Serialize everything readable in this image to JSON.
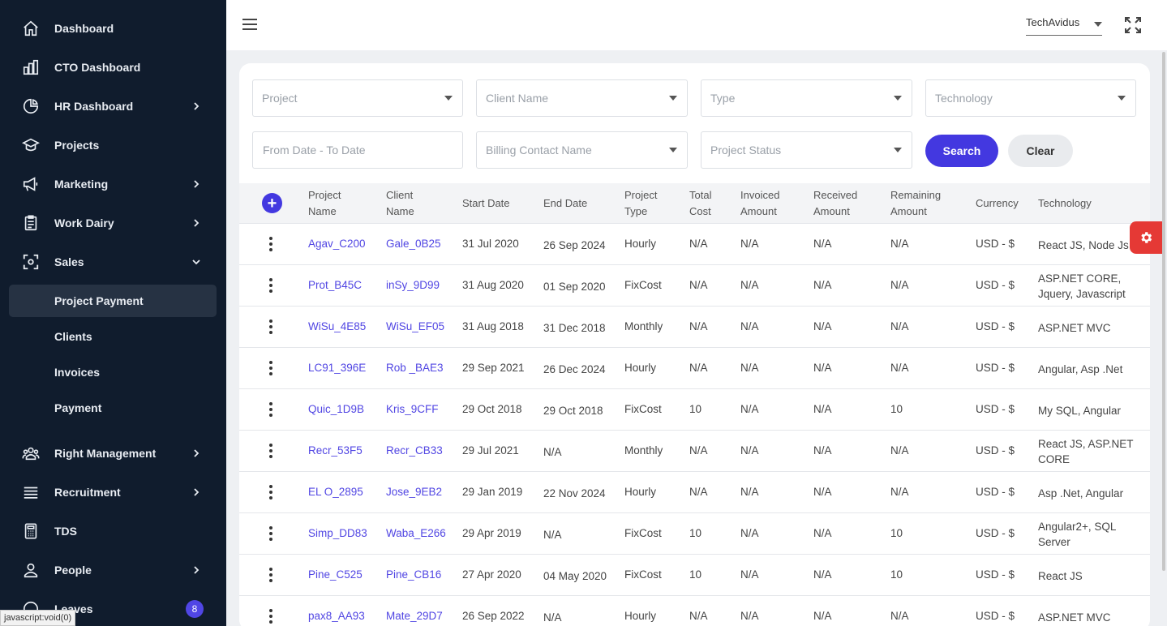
{
  "sidebar": {
    "items": [
      {
        "label": "Dashboard",
        "icon": "home-icon"
      },
      {
        "label": "CTO Dashboard",
        "icon": "bar-chart-icon"
      },
      {
        "label": "HR Dashboard",
        "icon": "pie-chart-icon"
      },
      {
        "label": "Projects",
        "icon": "projects-icon"
      },
      {
        "label": "Marketing",
        "icon": "megaphone-icon"
      },
      {
        "label": "Work Dairy",
        "icon": "clipboard-icon"
      },
      {
        "label": "Sales",
        "icon": "sales-icon"
      },
      {
        "label": "Right Management",
        "icon": "users-icon"
      },
      {
        "label": "Recruitment",
        "icon": "list-icon"
      },
      {
        "label": "TDS",
        "icon": "calculator-icon"
      },
      {
        "label": "People",
        "icon": "people-icon"
      },
      {
        "label": "Leaves",
        "icon": "leaves-icon"
      }
    ],
    "sales_sub": [
      "Project Payment",
      "Clients",
      "Invoices",
      "Payment"
    ],
    "leaves_badge": "8",
    "status_text": "javascript:void(0)"
  },
  "topbar": {
    "company": "TechAvidus"
  },
  "filters": {
    "project": "Project",
    "client_name": "Client Name",
    "type": "Type",
    "technology": "Technology",
    "date_range": "From Date - To Date",
    "billing_contact": "Billing Contact Name",
    "project_status": "Project Status",
    "search_label": "Search",
    "clear_label": "Clear"
  },
  "table": {
    "headers": {
      "project_name": [
        "Project",
        "Name"
      ],
      "client_name": [
        "Client",
        "Name"
      ],
      "start_date": "Start Date",
      "end_date": "End Date",
      "project_type": [
        "Project",
        "Type"
      ],
      "total_cost": [
        "Total",
        "Cost"
      ],
      "invoiced_amount": [
        "Invoiced",
        "Amount"
      ],
      "received_amount": [
        "Received",
        "Amount"
      ],
      "remaining_amount": [
        "Remaining",
        "Amount"
      ],
      "currency": "Currency",
      "technology": "Technology"
    },
    "rows": [
      {
        "project": "Agav_C200",
        "client": "Gale_0B25",
        "start": "31 Jul 2020",
        "end": "26 Sep 2024",
        "type": "Hourly",
        "total": "N/A",
        "invoiced": "N/A",
        "received": "N/A",
        "remaining": "N/A",
        "currency": "USD - $",
        "tech": "React JS, Node Js"
      },
      {
        "project": "Prot_B45C",
        "client": "inSy_9D99",
        "start": "31 Aug 2020",
        "end": "01 Sep 2020",
        "type": "FixCost",
        "total": "N/A",
        "invoiced": "N/A",
        "received": "N/A",
        "remaining": "N/A",
        "currency": "USD - $",
        "tech": "ASP.NET CORE, Jquery, Javascript"
      },
      {
        "project": "WiSu_4E85",
        "client": "WiSu_EF05",
        "start": "31 Aug 2018",
        "end": "31 Dec 2018",
        "type": "Monthly",
        "total": "N/A",
        "invoiced": "N/A",
        "received": "N/A",
        "remaining": "N/A",
        "currency": "USD - $",
        "tech": "ASP.NET MVC"
      },
      {
        "project": "LC91_396E",
        "client": "Rob _BAE3",
        "start": "29 Sep 2021",
        "end": "26 Dec 2024",
        "type": "Hourly",
        "total": "N/A",
        "invoiced": "N/A",
        "received": "N/A",
        "remaining": "N/A",
        "currency": "USD - $",
        "tech": "Angular, Asp .Net"
      },
      {
        "project": "Quic_1D9B",
        "client": "Kris_9CFF",
        "start": "29 Oct 2018",
        "end": "29 Oct 2018",
        "type": "FixCost",
        "total": "10",
        "invoiced": "N/A",
        "received": "N/A",
        "remaining": "10",
        "currency": "USD - $",
        "tech": "My SQL, Angular"
      },
      {
        "project": "Recr_53F5",
        "client": "Recr_CB33",
        "start": "29 Jul 2021",
        "end": "N/A",
        "type": "Monthly",
        "total": "N/A",
        "invoiced": "N/A",
        "received": "N/A",
        "remaining": "N/A",
        "currency": "USD - $",
        "tech": "React JS, ASP.NET CORE"
      },
      {
        "project": "EL O_2895",
        "client": "Jose_9EB2",
        "start": "29 Jan 2019",
        "end": "22 Nov 2024",
        "type": "Hourly",
        "total": "N/A",
        "invoiced": "N/A",
        "received": "N/A",
        "remaining": "N/A",
        "currency": "USD - $",
        "tech": "Asp .Net, Angular"
      },
      {
        "project": "Simp_DD83",
        "client": "Waba_E266",
        "start": "29 Apr 2019",
        "end": "N/A",
        "type": "FixCost",
        "total": "10",
        "invoiced": "N/A",
        "received": "N/A",
        "remaining": "10",
        "currency": "USD - $",
        "tech": "Angular2+, SQL Server"
      },
      {
        "project": "Pine_C525",
        "client": "Pine_CB16",
        "start": "27 Apr 2020",
        "end": "04 May 2020",
        "type": "FixCost",
        "total": "10",
        "invoiced": "N/A",
        "received": "N/A",
        "remaining": "10",
        "currency": "USD - $",
        "tech": "React JS"
      },
      {
        "project": "pax8_AA93",
        "client": "Mate_29D7",
        "start": "26 Sep 2022",
        "end": "N/A",
        "type": "Hourly",
        "total": "N/A",
        "invoiced": "N/A",
        "received": "N/A",
        "remaining": "N/A",
        "currency": "USD - $",
        "tech": "ASP.NET MVC"
      }
    ]
  },
  "colors": {
    "sidebar_bg": "#101c2d",
    "accent": "#4338e0",
    "link": "#5146e3",
    "settings_tab": "#e53935"
  }
}
